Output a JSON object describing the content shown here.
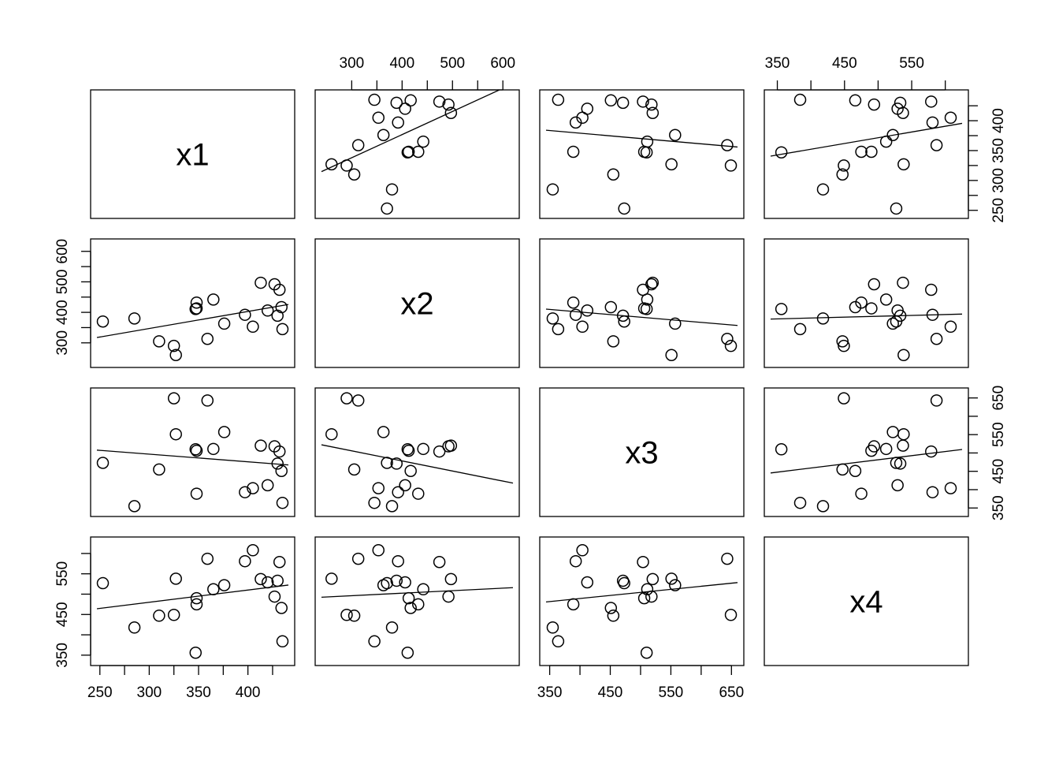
{
  "chart_data": {
    "type": "scatter",
    "variables": [
      "x1",
      "x2",
      "x3",
      "x4"
    ],
    "n_points": 20,
    "points": {
      "x1": [
        253,
        285,
        310,
        325,
        327,
        347,
        348,
        348,
        359,
        365,
        376,
        397,
        405,
        413,
        420,
        427,
        430,
        432,
        434,
        435
      ],
      "x2": [
        370,
        380,
        305,
        290,
        260,
        411,
        413,
        432,
        313,
        442,
        363,
        392,
        353,
        497,
        406,
        492,
        389,
        474,
        417,
        345
      ],
      "x3": [
        473,
        355,
        455,
        649,
        551,
        510,
        506,
        389,
        643,
        511,
        557,
        393,
        404,
        520,
        412,
        518,
        471,
        504,
        451,
        364
      ],
      "x4": [
        527,
        418,
        447,
        449,
        538,
        356,
        490,
        475,
        587,
        512,
        522,
        581,
        608,
        537,
        529,
        494,
        533,
        579,
        466,
        384
      ]
    },
    "axis_ticks": {
      "x1": [
        "250",
        "300",
        "350",
        "400"
      ],
      "x2": [
        "300",
        "400",
        "500",
        "600"
      ],
      "x3": [
        "350",
        "450",
        "550",
        "650"
      ],
      "x4": [
        "350",
        "450",
        "550"
      ]
    },
    "axis_ranges": {
      "x1": [
        247,
        441
      ],
      "x2": [
        240,
        620
      ],
      "x3": [
        344,
        660
      ],
      "x4": [
        340,
        625
      ]
    },
    "fit_lines": "least-squares regression line in each off-diagonal panel",
    "grid": false,
    "legend": "none"
  }
}
